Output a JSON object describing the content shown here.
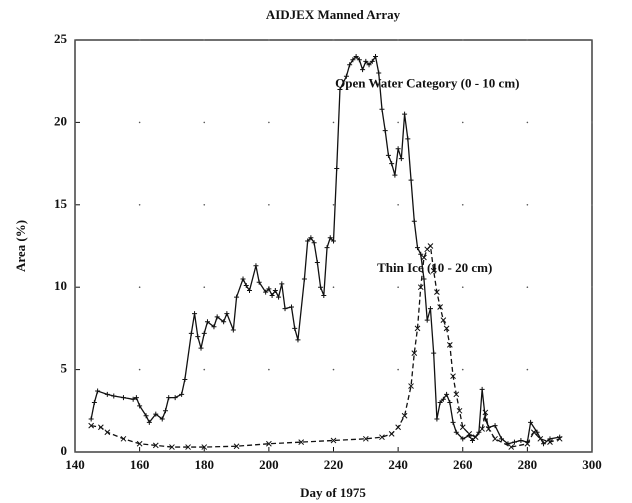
{
  "chart_data": {
    "type": "line",
    "title": "AIDJEX Manned Array",
    "xlabel": "Day of 1975",
    "ylabel": "Area (%)",
    "xlim": [
      140,
      300
    ],
    "xticks": [
      140,
      160,
      180,
      200,
      220,
      240,
      260,
      280,
      300
    ],
    "ylim": [
      0,
      25
    ],
    "yticks": [
      0,
      5,
      10,
      15,
      20,
      25
    ],
    "grid": true,
    "series": [
      {
        "name": "Open Water Category (0 - 10 cm)",
        "color": "#111111",
        "dash": "solid",
        "marker": "plus",
        "x": [
          145,
          146,
          147,
          150,
          152,
          155,
          158,
          159,
          160,
          162,
          163,
          165,
          167,
          168,
          169,
          171,
          173,
          174,
          176,
          177,
          178,
          179,
          180,
          181,
          183,
          184,
          186,
          187,
          189,
          190,
          192,
          193,
          194,
          196,
          197,
          199,
          200,
          201,
          202,
          203,
          204,
          205,
          207,
          208,
          209,
          211,
          212,
          213,
          214,
          215,
          216,
          217,
          218,
          219,
          220,
          221,
          222,
          224,
          225,
          226,
          227,
          228,
          229,
          230,
          231,
          232,
          233,
          234,
          235,
          236,
          237,
          238,
          239,
          240,
          241,
          242,
          243,
          244,
          245,
          246,
          247,
          248,
          249,
          250,
          251,
          252,
          253,
          254,
          255,
          256,
          257,
          258,
          260,
          262,
          263,
          265,
          266,
          267,
          268,
          270,
          272,
          274,
          276,
          278,
          280,
          281,
          283,
          285,
          287,
          290
        ],
        "values": [
          2.0,
          3.0,
          3.7,
          3.5,
          3.4,
          3.3,
          3.2,
          3.3,
          2.8,
          2.2,
          1.8,
          2.3,
          2.0,
          2.5,
          3.3,
          3.3,
          3.5,
          4.4,
          7.2,
          8.4,
          7.0,
          6.3,
          7.2,
          7.9,
          7.6,
          8.2,
          7.9,
          8.4,
          7.4,
          9.4,
          10.5,
          10.1,
          9.8,
          11.3,
          10.3,
          9.7,
          9.9,
          9.5,
          9.8,
          9.4,
          10.2,
          8.7,
          8.8,
          7.5,
          6.8,
          10.5,
          12.8,
          13.0,
          12.7,
          11.5,
          10.0,
          9.5,
          12.4,
          13.0,
          12.8,
          17.2,
          22.0,
          22.8,
          23.5,
          23.8,
          24.0,
          23.8,
          23.2,
          23.7,
          23.5,
          23.7,
          24.0,
          23.0,
          20.8,
          19.5,
          18.0,
          17.5,
          16.8,
          18.4,
          17.8,
          20.5,
          19.0,
          16.5,
          14.0,
          12.4,
          12.0,
          10.5,
          8.0,
          8.7,
          6.0,
          2.0,
          3.0,
          3.2,
          3.5,
          3.0,
          1.8,
          1.2,
          0.8,
          1.0,
          0.7,
          1.2,
          3.8,
          2.0,
          1.5,
          1.6,
          0.8,
          0.5,
          0.6,
          0.7,
          0.6,
          1.8,
          1.2,
          0.5,
          0.8,
          0.9
        ]
      },
      {
        "name": "Thin Ice (10 - 20 cm)",
        "color": "#111111",
        "dash": "dashed",
        "marker": "cross",
        "x": [
          145,
          148,
          150,
          155,
          160,
          165,
          170,
          175,
          180,
          190,
          200,
          210,
          220,
          230,
          235,
          238,
          240,
          242,
          244,
          245,
          246,
          247,
          248,
          249,
          250,
          251,
          252,
          253,
          254,
          255,
          256,
          257,
          258,
          259,
          260,
          262,
          264,
          266,
          267,
          268,
          270,
          275,
          280,
          282,
          284,
          287,
          290
        ],
        "values": [
          1.6,
          1.5,
          1.2,
          0.8,
          0.5,
          0.4,
          0.3,
          0.3,
          0.3,
          0.35,
          0.5,
          0.6,
          0.7,
          0.8,
          0.9,
          1.1,
          1.5,
          2.2,
          4.0,
          6.0,
          7.5,
          10.0,
          11.8,
          12.3,
          12.5,
          11.0,
          9.7,
          8.8,
          8.0,
          7.5,
          6.5,
          4.6,
          3.5,
          2.5,
          1.5,
          1.1,
          0.9,
          1.4,
          2.4,
          1.4,
          0.8,
          0.3,
          0.5,
          1.2,
          0.8,
          0.6,
          0.8
        ]
      }
    ]
  }
}
